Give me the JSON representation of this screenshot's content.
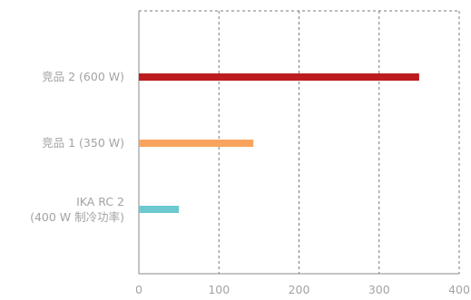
{
  "chart_data": {
    "type": "bar",
    "orientation": "horizontal",
    "categories": [
      [
        "竞品 2 (600 W)"
      ],
      [
        "竞品 1 (350 W)"
      ],
      [
        "IKA RC 2",
        "(400 W 制冷功率)"
      ]
    ],
    "values": [
      350,
      143,
      50
    ],
    "bar_colors": [
      "#bc1c20",
      "#f9a45e",
      "#6cc9d0"
    ],
    "xlim": [
      0,
      400
    ],
    "xticks": [
      0,
      100,
      200,
      300,
      400
    ],
    "grid": "vertical dashed",
    "title": "",
    "xlabel": "",
    "ylabel": ""
  }
}
